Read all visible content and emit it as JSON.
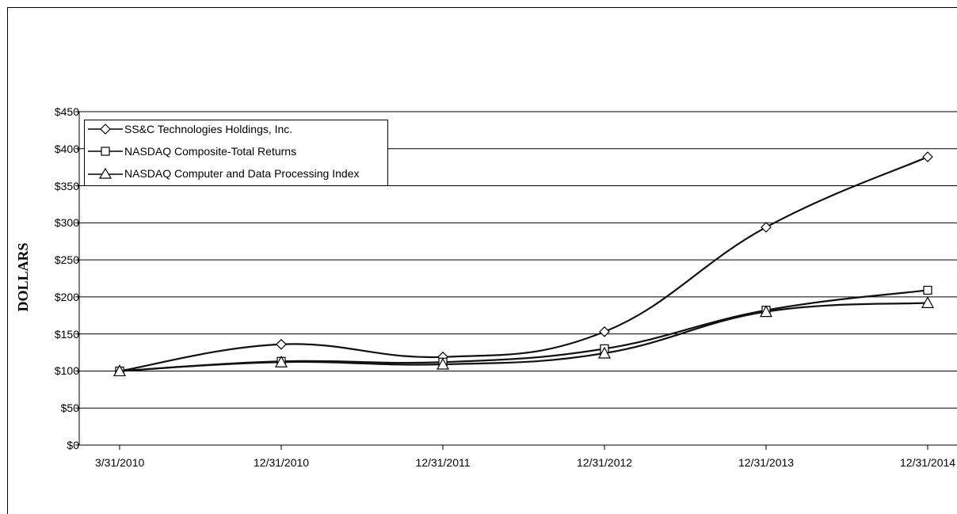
{
  "chart_data": {
    "type": "line",
    "ylabel": "DOLLARS",
    "xlabel": "",
    "title": "",
    "ylim": [
      0,
      450
    ],
    "y_ticks": [
      "$0",
      "$50",
      "$100",
      "$150",
      "$200",
      "$250",
      "$300",
      "$350",
      "$400",
      "$450"
    ],
    "y_tick_values": [
      0,
      50,
      100,
      150,
      200,
      250,
      300,
      350,
      400,
      450
    ],
    "categories": [
      "3/31/2010",
      "12/31/2010",
      "12/31/2011",
      "12/31/2012",
      "12/31/2013",
      "12/31/2014"
    ],
    "grid": true,
    "legend_position": "top-left",
    "series": [
      {
        "name": "SS&C Technologies Holdings, Inc.",
        "marker": "diamond",
        "values": [
          100,
          136,
          119,
          153,
          294,
          389
        ]
      },
      {
        "name": "NASDAQ Composite-Total Returns",
        "marker": "square",
        "values": [
          100,
          113,
          112,
          130,
          182,
          209
        ]
      },
      {
        "name": "NASDAQ Computer and Data Processing Index",
        "marker": "triangle",
        "values": [
          100,
          112,
          109,
          124,
          180,
          192
        ]
      }
    ]
  }
}
